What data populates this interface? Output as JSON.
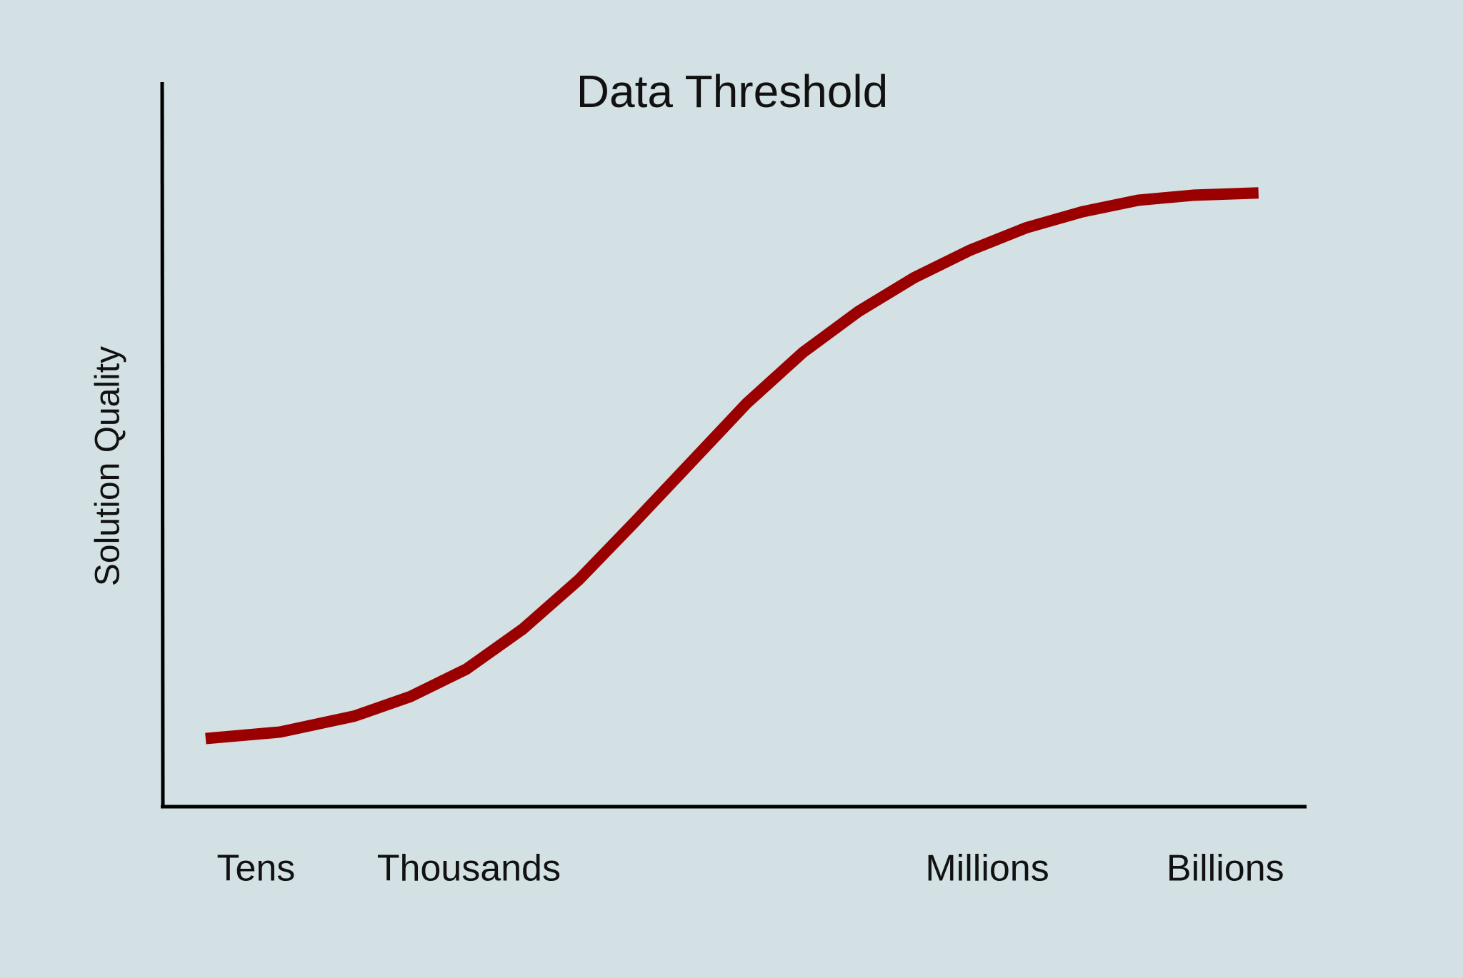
{
  "chart_data": {
    "type": "line",
    "title": "Data Threshold",
    "y_label": "Solution Quality",
    "xlim": [
      0,
      100
    ],
    "ylim": [
      0,
      100
    ],
    "xticks": [
      {
        "value": 8.2,
        "label": "Tens"
      },
      {
        "value": 26.8,
        "label": "Thousands"
      },
      {
        "value": 72.1,
        "label": "Millions"
      },
      {
        "value": 92.9,
        "label": "Billions"
      }
    ],
    "grid": false,
    "x": [
      3.8,
      10.3,
      16.8,
      21.7,
      26.6,
      31.5,
      36.4,
      41.3,
      46.2,
      51.1,
      56.0,
      60.8,
      65.7,
      70.6,
      75.5,
      80.4,
      85.3,
      90.2,
      95.8
    ],
    "series": [
      {
        "color": "#9b0000",
        "values": [
          9.4,
          10.3,
          12.5,
          15.2,
          19.0,
          24.5,
          31.3,
          39.3,
          47.5,
          55.7,
          62.7,
          68.3,
          73.0,
          76.8,
          79.9,
          82.1,
          83.7,
          84.4,
          84.7
        ]
      }
    ]
  }
}
